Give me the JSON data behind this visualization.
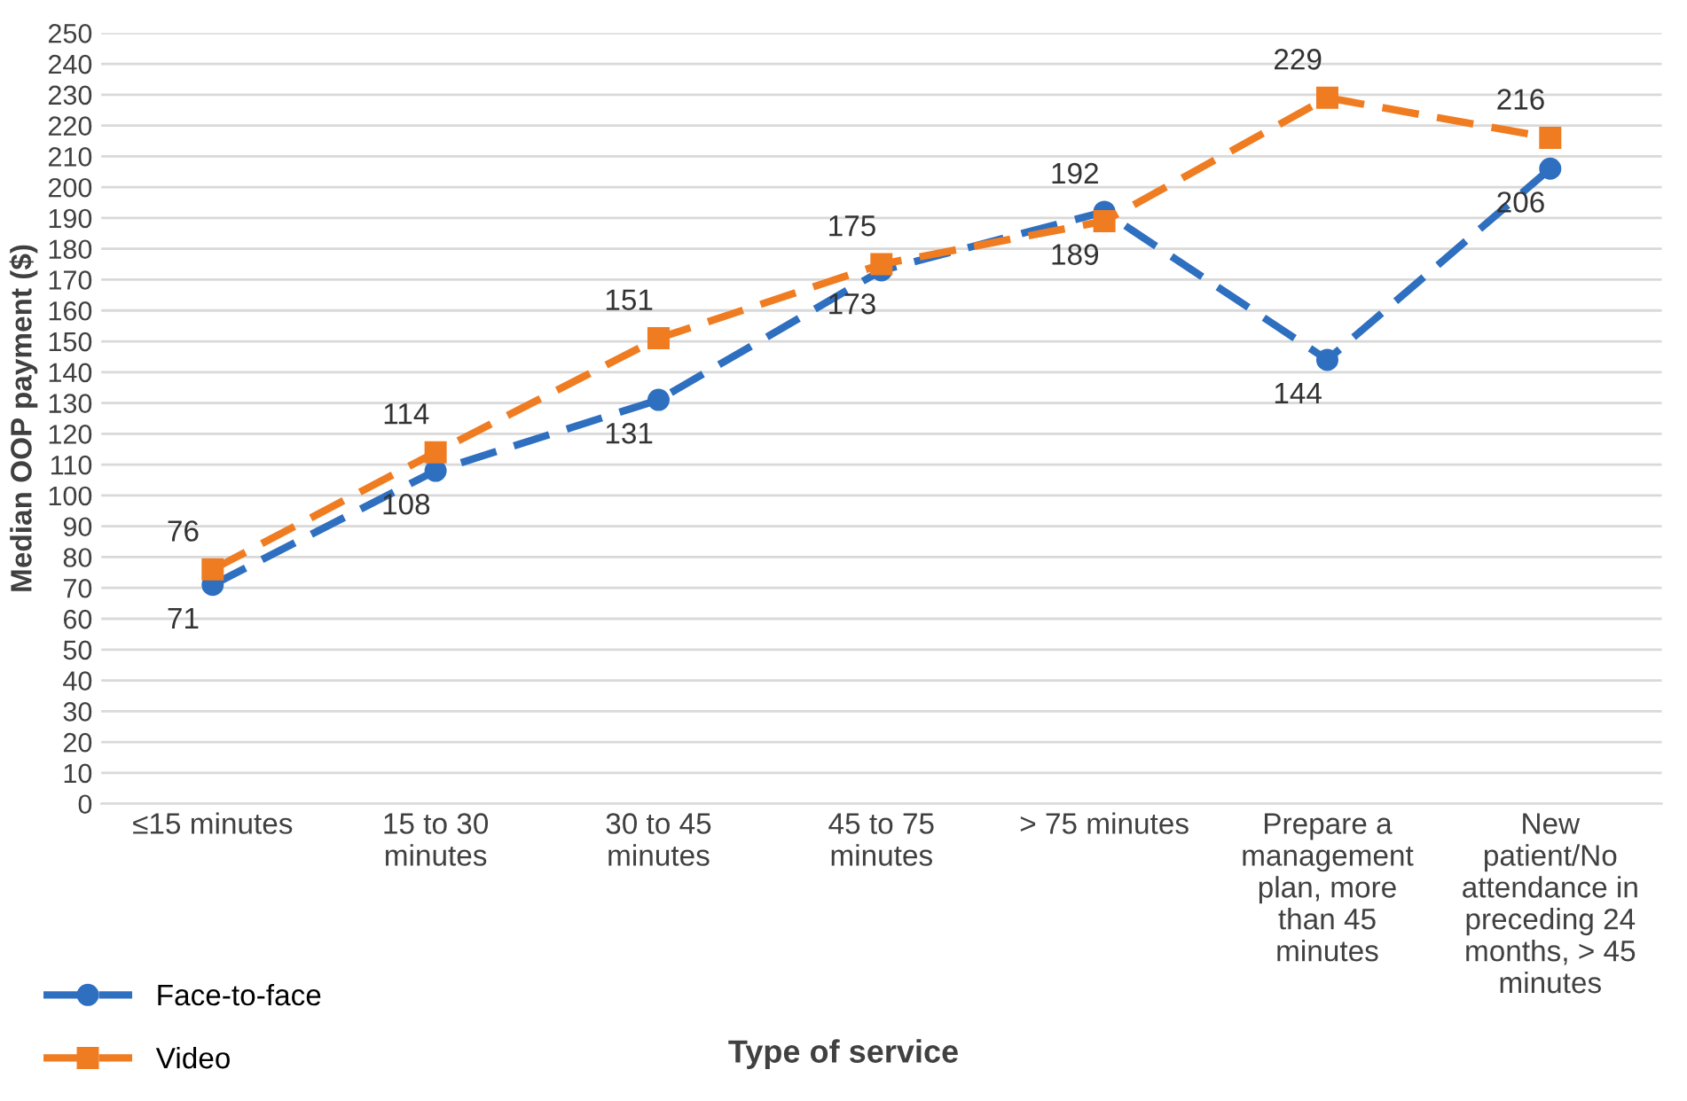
{
  "chart_data": {
    "type": "line",
    "xlabel": "Type of service",
    "ylabel": "Median OOP payment ($)",
    "categories": [
      "≤15 minutes",
      "15 to 30 minutes",
      "30 to 45 minutes",
      "45 to 75 minutes",
      "> 75 minutes",
      "Prepare a management plan, more than 45 minutes",
      "New patient/No attendance in preceding 24 months, > 45 minutes"
    ],
    "series": [
      {
        "name": "Face-to-face",
        "color": "#2e6fc0",
        "values": [
          71,
          108,
          131,
          173,
          192,
          144,
          206
        ],
        "marker": "circle"
      },
      {
        "name": "Video",
        "color": "#f07c22",
        "values": [
          76,
          114,
          151,
          175,
          189,
          229,
          216
        ],
        "marker": "square"
      }
    ],
    "ylim": [
      0,
      250
    ],
    "yticks": [
      0,
      10,
      20,
      30,
      40,
      50,
      60,
      70,
      80,
      90,
      100,
      110,
      120,
      130,
      140,
      150,
      160,
      170,
      180,
      190,
      200,
      210,
      220,
      230,
      240,
      250
    ],
    "grid": "y",
    "legend": "bottom left",
    "line_style": "dashed",
    "data_labels": true
  }
}
